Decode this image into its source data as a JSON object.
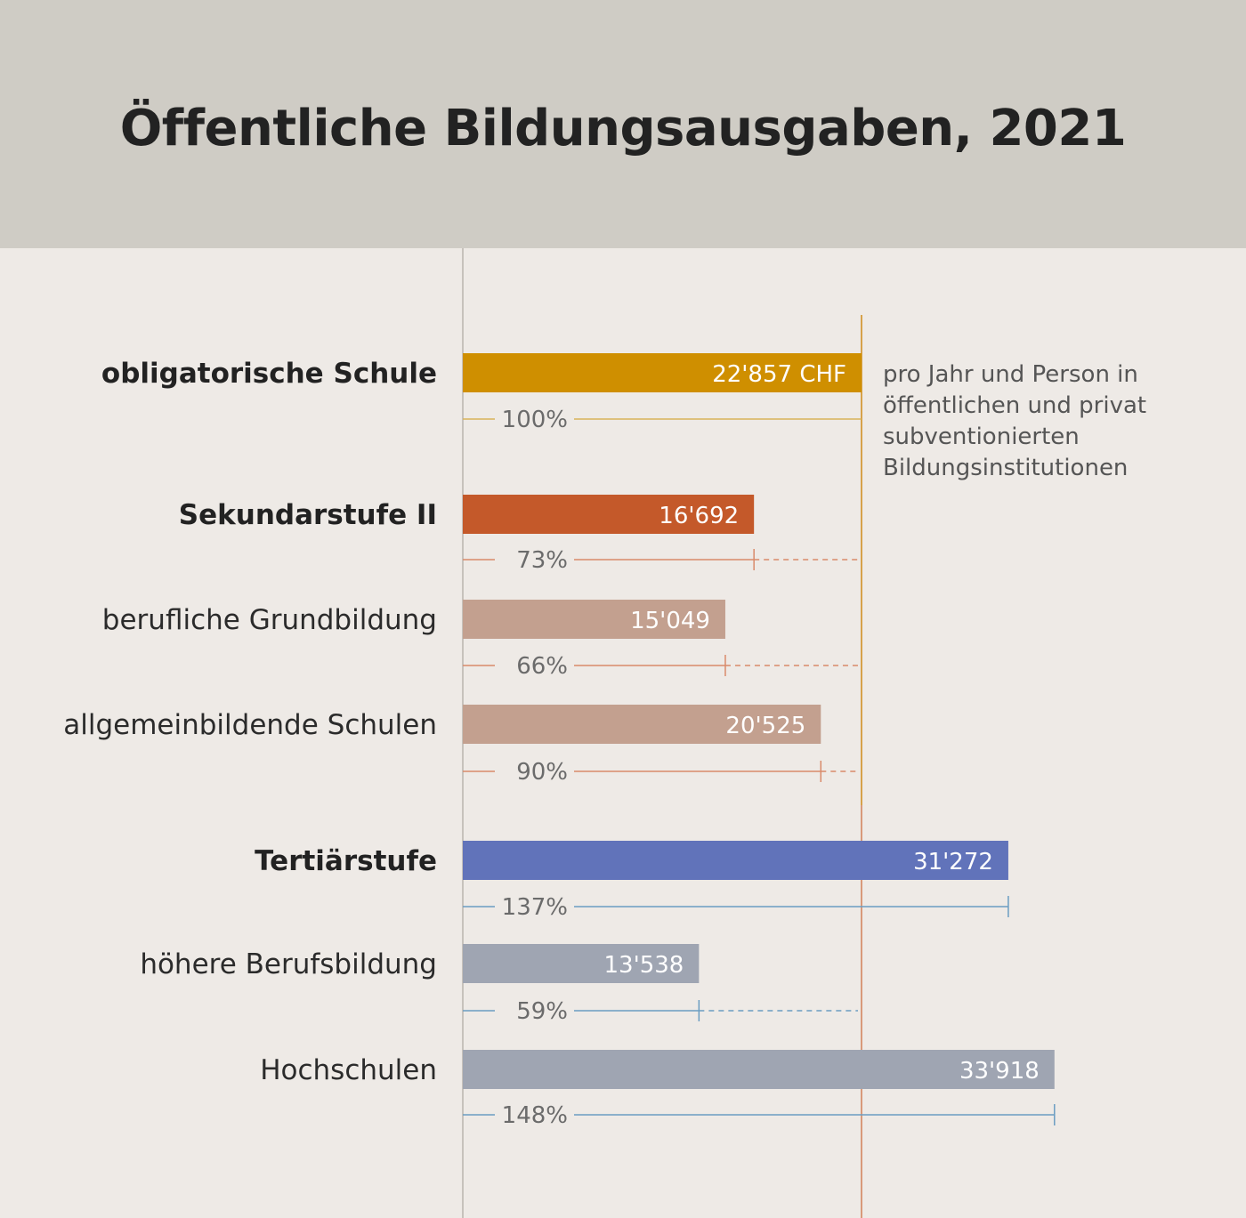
{
  "title": "Öffentliche Bildungsausgaben, 2021",
  "note_lines": [
    "pro Jahr und Person in",
    "öffentlichen und privat",
    "subventionierten",
    "Bildungsinstitutionen"
  ],
  "colors": {
    "header_bg": "#cfccc5",
    "page_bg": "#eeeae6",
    "reference_line": "#d7a24a",
    "obligatorisch": "#cf8f00",
    "sekundar": "#c4592a",
    "sekundar_sub": "#c3a08f",
    "tertiaer": "#6173ba",
    "tertiaer_sub": "#9fa5b2",
    "pct_line_orange": "#d98a6a",
    "pct_line_blue": "#6a9dc2",
    "pct_line_gold": "#d9b35a"
  },
  "chart_data": {
    "type": "bar",
    "orientation": "horizontal",
    "title": "Öffentliche Bildungsausgaben, 2021",
    "unit": "CHF",
    "reference_value": 22857,
    "rows": [
      {
        "label": "obligatorische Schule",
        "bold": true,
        "value": 22857,
        "value_label": "22'857 CHF",
        "pct_label": "100%",
        "group": "obligatorisch"
      },
      {
        "label": "Sekundarstufe II",
        "bold": true,
        "value": 16692,
        "value_label": "16'692",
        "pct_label": "73%",
        "group": "sekundar"
      },
      {
        "label": "berufliche Grundbildung",
        "bold": false,
        "value": 15049,
        "value_label": "15'049",
        "pct_label": "66%",
        "group": "sekundar_sub"
      },
      {
        "label": "allgemeinbildende Schulen",
        "bold": false,
        "value": 20525,
        "value_label": "20'525",
        "pct_label": "90%",
        "group": "sekundar_sub"
      },
      {
        "label": "Tertiärstufe",
        "bold": true,
        "value": 31272,
        "value_label": "31'272",
        "pct_label": "137%",
        "group": "tertiaer"
      },
      {
        "label": "höhere Berufsbildung",
        "bold": false,
        "value": 13538,
        "value_label": "13'538",
        "pct_label": "59%",
        "group": "tertiaer_sub"
      },
      {
        "label": "Hochschulen",
        "bold": false,
        "value": 33918,
        "value_label": "33'918",
        "pct_label": "148%",
        "group": "tertiaer_sub"
      }
    ]
  }
}
